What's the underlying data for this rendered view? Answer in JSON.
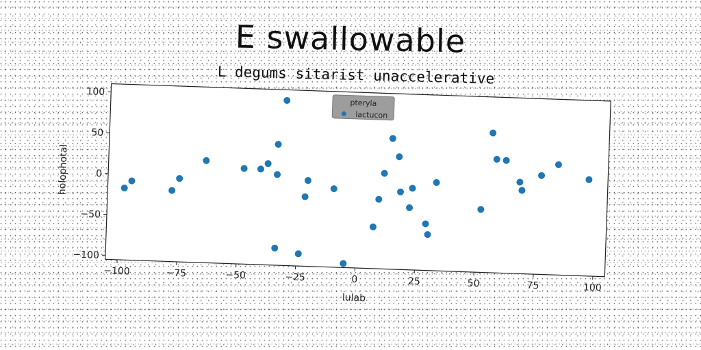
{
  "chart_data": {
    "type": "scatter",
    "title": "E swallowable",
    "subtitle": "L degums sitarist unaccelerative",
    "xlabel": "lulab",
    "ylabel": "holophotal",
    "xlim": [
      -105,
      105
    ],
    "ylim": [
      -105,
      110
    ],
    "xticks": [
      -100,
      -75,
      -50,
      -25,
      0,
      25,
      50,
      75,
      100
    ],
    "yticks": [
      -100,
      -50,
      0,
      50,
      100
    ],
    "grid": false,
    "legend": {
      "title": "pteryla",
      "placement": "top-center",
      "entries": [
        "lactucon"
      ]
    },
    "series": [
      {
        "name": "lactucon",
        "color": "#1f77b4",
        "points": [
          [
            -98,
            -17
          ],
          [
            -95,
            -8
          ],
          [
            -78,
            -18
          ],
          [
            -75,
            -3
          ],
          [
            -64,
            20
          ],
          [
            -48,
            12
          ],
          [
            -41,
            12
          ],
          [
            -38,
            19
          ],
          [
            -34,
            43
          ],
          [
            -34,
            6
          ],
          [
            -31,
            97
          ],
          [
            -34,
            -84
          ],
          [
            -22,
            -20
          ],
          [
            -21,
            0
          ],
          [
            -24,
            -90
          ],
          [
            -10,
            -9
          ],
          [
            -5,
            -100
          ],
          [
            7,
            -54
          ],
          [
            9,
            -20
          ],
          [
            11,
            12
          ],
          [
            14,
            55
          ],
          [
            17,
            33
          ],
          [
            18,
            -10
          ],
          [
            22,
            -29
          ],
          [
            23,
            -5
          ],
          [
            29,
            -48
          ],
          [
            30,
            -61
          ],
          [
            33,
            3
          ],
          [
            52,
            -28
          ],
          [
            56,
            66
          ],
          [
            58,
            34
          ],
          [
            62,
            33
          ],
          [
            68,
            7
          ],
          [
            69,
            -3
          ],
          [
            77,
            16
          ],
          [
            84,
            30
          ],
          [
            97,
            13
          ]
        ]
      }
    ]
  }
}
